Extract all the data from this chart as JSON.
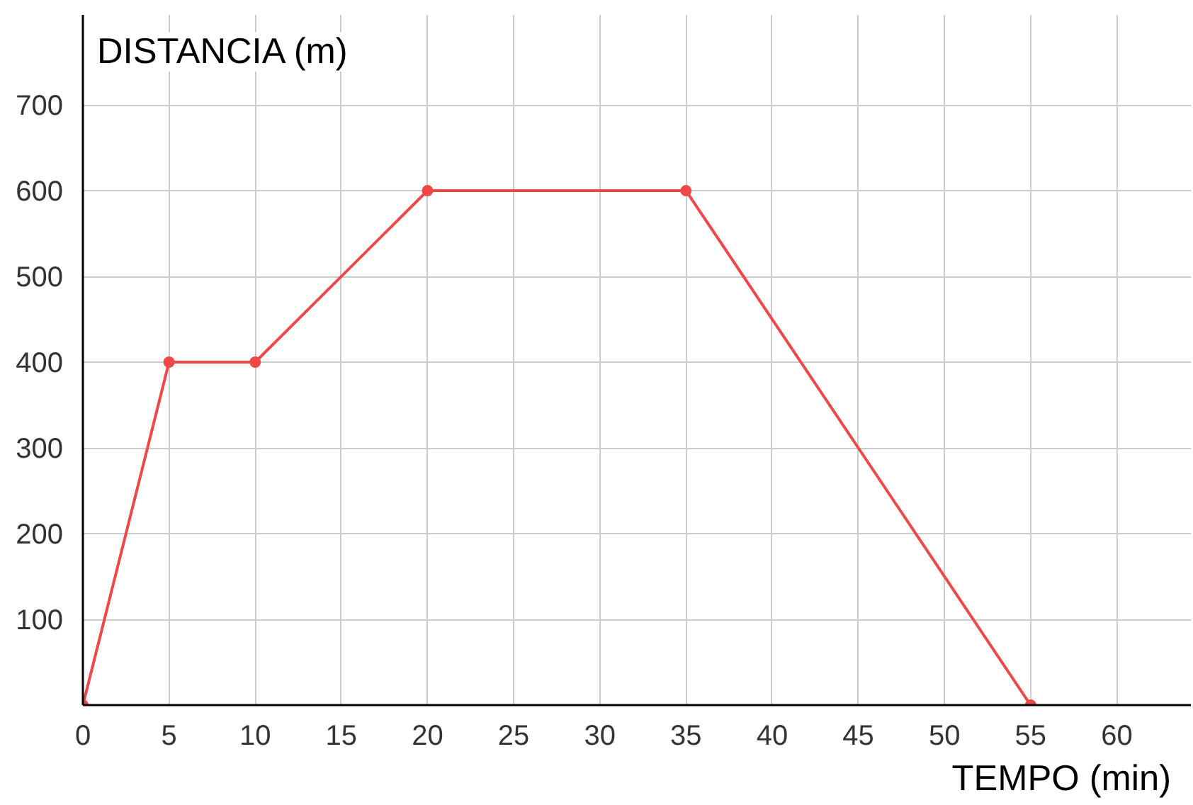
{
  "chart_data": {
    "type": "line",
    "xlabel": "TEMPO (min)",
    "ylabel": "DISTANCIA (m)",
    "x": [
      0,
      5,
      10,
      20,
      35,
      55
    ],
    "series": [
      {
        "color": "#f04848",
        "values": [
          0,
          400,
          400,
          600,
          600,
          0
        ]
      }
    ],
    "xlim": [
      0,
      64.3
    ],
    "ylim": [
      0,
      805
    ],
    "xticks": [
      0,
      5,
      10,
      15,
      20,
      25,
      30,
      35,
      40,
      45,
      50,
      55,
      60
    ],
    "yticks": [
      100,
      200,
      300,
      400,
      500,
      600,
      700
    ],
    "grid": true,
    "marker": "circle",
    "line_style": "solid"
  }
}
